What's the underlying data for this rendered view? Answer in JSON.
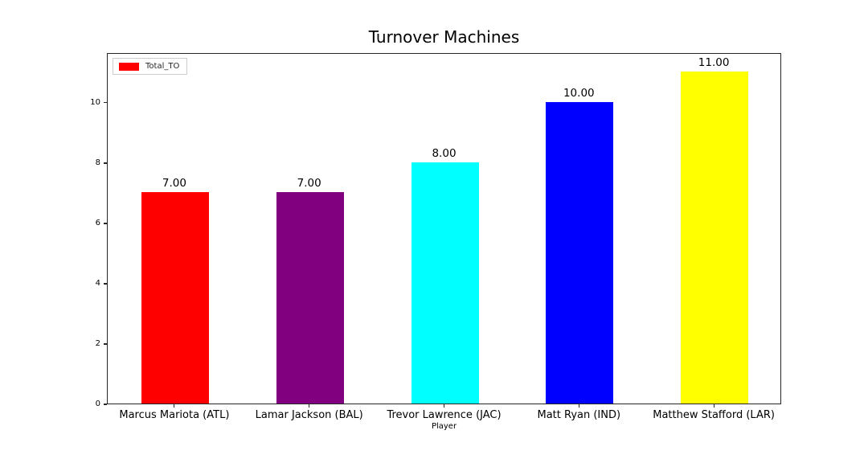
{
  "figure": {
    "title": "Turnover Machines",
    "xlabel": "Player",
    "legend": {
      "label": "Total_TO",
      "swatch_color": "#ff0000",
      "position": "upper left"
    }
  },
  "chart_data": {
    "type": "bar",
    "title": "Turnover Machines",
    "xlabel": "Player",
    "ylabel": "",
    "categories": [
      "Marcus Mariota (ATL)",
      "Lamar Jackson (BAL)",
      "Trevor Lawrence (JAC)",
      "Matt Ryan (IND)",
      "Matthew Stafford (LAR)"
    ],
    "series": [
      {
        "name": "Total_TO",
        "values": [
          7,
          7,
          8,
          10,
          11
        ]
      }
    ],
    "bar_value_labels": [
      "7.00",
      "7.00",
      "8.00",
      "10.00",
      "11.00"
    ],
    "bar_colors": [
      "#ff0000",
      "#800080",
      "#00ffff",
      "#0000ff",
      "#ffff00"
    ],
    "yticks": [
      0,
      2,
      4,
      6,
      8,
      10
    ],
    "ylim": [
      0,
      11.65
    ],
    "grid": false,
    "legend_position": "upper left",
    "legend_entries": [
      "Total_TO"
    ]
  }
}
